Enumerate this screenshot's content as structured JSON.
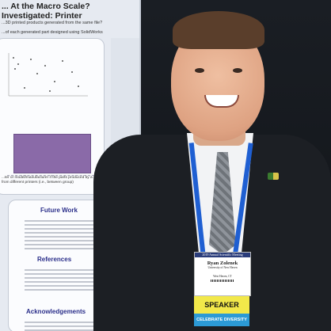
{
  "poster": {
    "title": "... At the Macro Scale?\nInvestigated: Printer",
    "question": "...3D printed products generated from the same file?",
    "subtitle": "...of each generated part designed using SolidWorks",
    "note": "...ter or model/manufacturer if the parts produced by a single ...ble from those from different printers (i.e., between group)",
    "future_work_heading": "Future Work",
    "references_heading": "References",
    "acknowledgements_heading": "Acknowledgements"
  },
  "badge": {
    "event": "2019 Annual Scientific Meeting",
    "name": "Ryan Zolenek",
    "affiliation": "University of New Haven",
    "location": "West Haven, CT",
    "role": "SPEAKER",
    "ribbon": "CELEBRATE DIVERSITY"
  },
  "colors": {
    "lanyard": "#1f5fd2",
    "speaker_ribbon": "#f2e84a",
    "diversity_ribbon": "#2c9ad6",
    "poster_heading": "#2b2f8a"
  }
}
